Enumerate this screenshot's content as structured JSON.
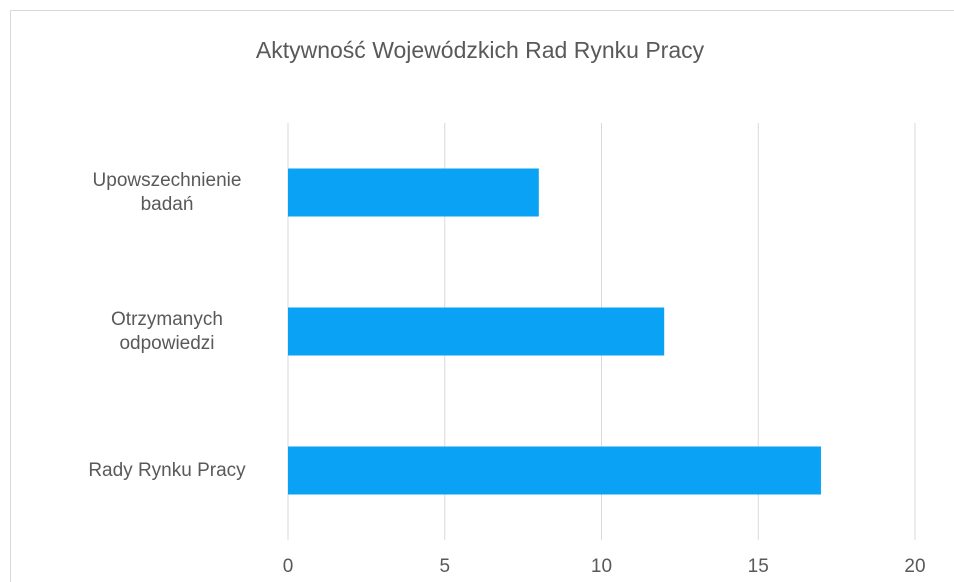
{
  "chart_data": {
    "type": "barh",
    "title": "Aktywność Wojewódzkich Rad Rynku Pracy",
    "categories": [
      "Upowszechnienie badań",
      "Otrzymanych odpowiedzi",
      "Rady Rynku Pracy"
    ],
    "values": [
      8,
      12,
      17
    ],
    "color": "#0aa2f5",
    "xlim": [
      0,
      20
    ],
    "xticks": [
      0,
      5,
      10,
      15,
      20
    ],
    "grid": true
  }
}
